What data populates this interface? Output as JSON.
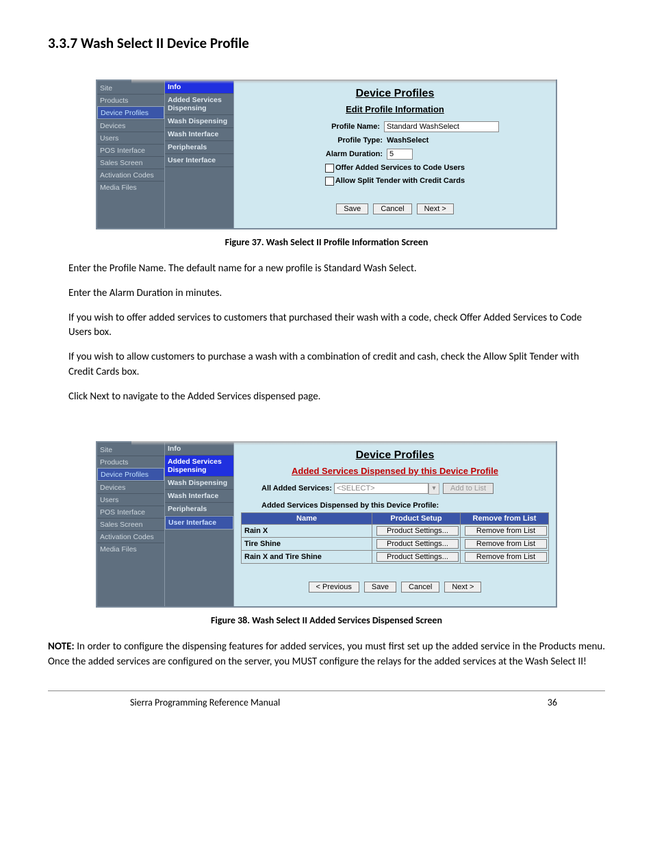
{
  "heading": "3.3.7  Wash Select II Device Profile",
  "leftNav": [
    "Site",
    "Products",
    "Device Profiles",
    "Devices",
    "Users",
    "POS Interface",
    "Sales Screen",
    "Activation Codes",
    "Media Files"
  ],
  "leftNavHighlightIndex": 2,
  "screenshot1": {
    "subNav": [
      "Info",
      "Added Services Dispensing",
      "Wash Dispensing",
      "Wash Interface",
      "Peripherals",
      "User Interface"
    ],
    "activeIdx": 0,
    "bigTitle": "Device Profiles",
    "subTitle": "Edit Profile Information",
    "profileNameLabel": "Profile Name:",
    "profileNameValue": "Standard WashSelect",
    "profileTypeLabel": "Profile Type:",
    "profileTypeValue": "WashSelect",
    "alarmDurationLabel": "Alarm Duration:",
    "alarmDurationValue": "5",
    "chk1": "Offer Added Services to Code Users",
    "chk2": "Allow Split Tender with Credit Cards",
    "saveLabel": "Save",
    "cancelLabel": "Cancel",
    "nextLabel": "Next >"
  },
  "caption1": "Figure 37. Wash Select II Profile Information Screen",
  "para1": "Enter the Profile Name. The default name for a new profile is Standard Wash Select.",
  "para2": "Enter the Alarm Duration in minutes.",
  "para3": "If you wish to offer added services to customers that purchased their wash with a code, check Offer Added Services to Code Users box.",
  "para4": "If you wish to allow customers to purchase a wash with a combination of credit and cash, check the Allow Split Tender with Credit Cards box.",
  "para5": "Click Next to navigate to the Added Services dispensed page.",
  "screenshot2": {
    "subNav": [
      "Info",
      "Added Services Dispensing",
      "Wash Dispensing",
      "Wash Interface",
      "Peripherals",
      "User Interface"
    ],
    "activeIdx": 1,
    "selIdx": 5,
    "bigTitle": "Device Profiles",
    "subTitle": "Added Services Dispensed by this Device Profile",
    "allAddedLabel": "All Added Services:",
    "allAddedPlaceholder": "<SELECT>",
    "addToListLabel": "Add to List",
    "dispensedLabel": "Added Services Dispensed by this Device Profile:",
    "tableHeaders": [
      "Name",
      "Product Setup",
      "Remove from List"
    ],
    "rows": [
      {
        "name": "Rain X",
        "setup": "Product Settings...",
        "remove": "Remove from List"
      },
      {
        "name": "Tire Shine",
        "setup": "Product Settings...",
        "remove": "Remove from List"
      },
      {
        "name": "Rain X and Tire Shine",
        "setup": "Product Settings...",
        "remove": "Remove from List"
      }
    ],
    "prevLabel": "< Previous",
    "saveLabel": "Save",
    "cancelLabel": "Cancel",
    "nextLabel": "Next >"
  },
  "caption2": "Figure 38. Wash Select II Added Services Dispensed Screen",
  "noteBold": "NOTE:",
  "noteText": " In order to configure the dispensing features for added services, you must first set up the added service in the Products menu. Once the added services are configured on the server, you MUST configure the relays for the added services at the Wash Select II!",
  "footerTitle": "Sierra Programming Reference Manual",
  "pageNum": "36"
}
